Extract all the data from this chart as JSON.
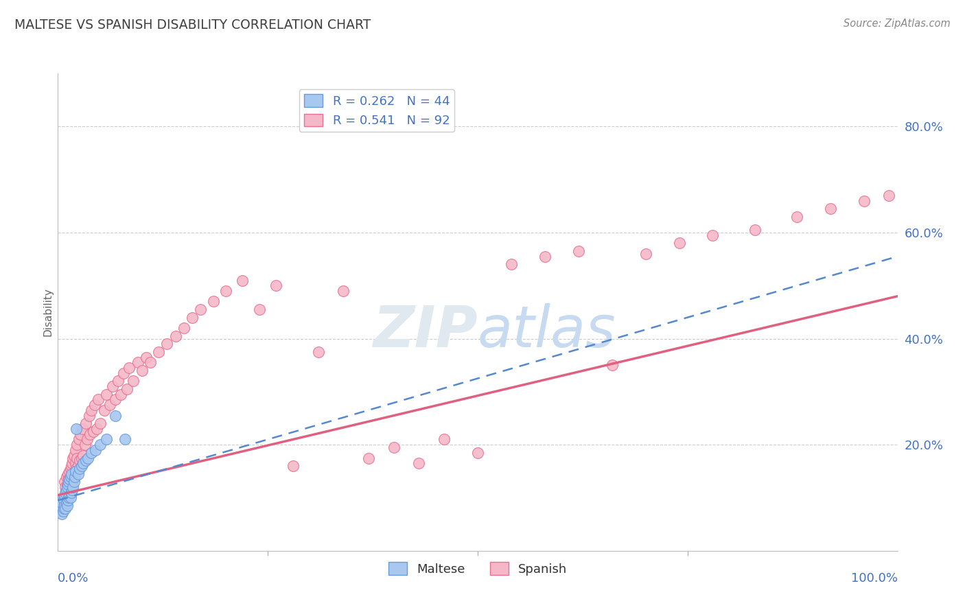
{
  "title": "MALTESE VS SPANISH DISABILITY CORRELATION CHART",
  "source": "Source: ZipAtlas.com",
  "ylabel": "Disability",
  "maltese_color": "#A8C8F0",
  "maltese_edge_color": "#6699DD",
  "maltese_line_color": "#5588CC",
  "spanish_color": "#F5B8C8",
  "spanish_edge_color": "#E87090",
  "spanish_line_color": "#E06080",
  "axis_label_color": "#4472C4",
  "title_color": "#404040",
  "source_color": "#888888",
  "background_color": "#ffffff",
  "grid_color": "#cccccc",
  "watermark_color": "#e0e8f0",
  "ytick_values": [
    0.2,
    0.4,
    0.6,
    0.8
  ],
  "ytick_labels": [
    "20.0%",
    "40.0%",
    "60.0%",
    "80.0%"
  ],
  "xlim": [
    0.0,
    1.0
  ],
  "ylim": [
    0.0,
    0.9
  ],
  "spanish_line_x0": 0.0,
  "spanish_line_y0": 0.105,
  "spanish_line_x1": 1.0,
  "spanish_line_y1": 0.48,
  "maltese_line_x0": 0.0,
  "maltese_line_y0": 0.095,
  "maltese_line_x1": 1.0,
  "maltese_line_y1": 0.555,
  "spanish_x": [
    0.008,
    0.009,
    0.01,
    0.01,
    0.011,
    0.011,
    0.012,
    0.012,
    0.013,
    0.013,
    0.014,
    0.014,
    0.015,
    0.015,
    0.016,
    0.016,
    0.017,
    0.017,
    0.018,
    0.018,
    0.019,
    0.019,
    0.02,
    0.021,
    0.021,
    0.022,
    0.023,
    0.023,
    0.024,
    0.025,
    0.026,
    0.027,
    0.028,
    0.029,
    0.03,
    0.032,
    0.033,
    0.035,
    0.037,
    0.038,
    0.04,
    0.042,
    0.044,
    0.046,
    0.048,
    0.05,
    0.055,
    0.058,
    0.062,
    0.065,
    0.068,
    0.072,
    0.075,
    0.078,
    0.082,
    0.085,
    0.09,
    0.095,
    0.1,
    0.105,
    0.11,
    0.12,
    0.13,
    0.14,
    0.15,
    0.16,
    0.17,
    0.185,
    0.2,
    0.22,
    0.24,
    0.26,
    0.28,
    0.31,
    0.34,
    0.37,
    0.4,
    0.43,
    0.46,
    0.5,
    0.54,
    0.58,
    0.62,
    0.66,
    0.7,
    0.74,
    0.78,
    0.83,
    0.88,
    0.92,
    0.96,
    0.99
  ],
  "spanish_y": [
    0.13,
    0.12,
    0.105,
    0.14,
    0.115,
    0.125,
    0.11,
    0.145,
    0.12,
    0.135,
    0.125,
    0.15,
    0.115,
    0.155,
    0.13,
    0.16,
    0.125,
    0.165,
    0.135,
    0.175,
    0.14,
    0.18,
    0.15,
    0.165,
    0.19,
    0.155,
    0.175,
    0.2,
    0.16,
    0.21,
    0.17,
    0.22,
    0.175,
    0.23,
    0.18,
    0.2,
    0.24,
    0.21,
    0.255,
    0.22,
    0.265,
    0.225,
    0.275,
    0.23,
    0.285,
    0.24,
    0.265,
    0.295,
    0.275,
    0.31,
    0.285,
    0.32,
    0.295,
    0.335,
    0.305,
    0.345,
    0.32,
    0.355,
    0.34,
    0.365,
    0.355,
    0.375,
    0.39,
    0.405,
    0.42,
    0.44,
    0.455,
    0.47,
    0.49,
    0.51,
    0.455,
    0.5,
    0.16,
    0.375,
    0.49,
    0.175,
    0.195,
    0.165,
    0.21,
    0.185,
    0.54,
    0.555,
    0.565,
    0.35,
    0.56,
    0.58,
    0.595,
    0.605,
    0.63,
    0.645,
    0.66,
    0.67
  ],
  "maltese_x": [
    0.003,
    0.004,
    0.005,
    0.005,
    0.006,
    0.006,
    0.007,
    0.007,
    0.008,
    0.008,
    0.009,
    0.009,
    0.01,
    0.01,
    0.011,
    0.011,
    0.012,
    0.012,
    0.013,
    0.013,
    0.014,
    0.014,
    0.015,
    0.015,
    0.016,
    0.016,
    0.017,
    0.018,
    0.019,
    0.02,
    0.021,
    0.022,
    0.024,
    0.026,
    0.028,
    0.03,
    0.033,
    0.036,
    0.04,
    0.045,
    0.05,
    0.058,
    0.068,
    0.08
  ],
  "maltese_y": [
    0.075,
    0.08,
    0.07,
    0.09,
    0.075,
    0.1,
    0.08,
    0.095,
    0.085,
    0.105,
    0.08,
    0.11,
    0.09,
    0.115,
    0.085,
    0.12,
    0.095,
    0.125,
    0.1,
    0.13,
    0.105,
    0.135,
    0.1,
    0.14,
    0.11,
    0.145,
    0.115,
    0.12,
    0.13,
    0.14,
    0.15,
    0.23,
    0.145,
    0.155,
    0.16,
    0.165,
    0.17,
    0.175,
    0.185,
    0.19,
    0.2,
    0.21,
    0.255,
    0.21
  ]
}
